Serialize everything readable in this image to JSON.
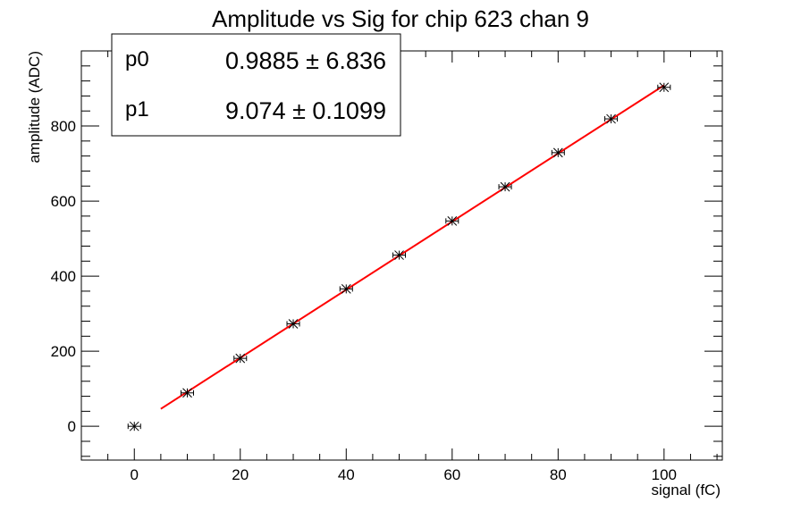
{
  "chart_data": {
    "type": "scatter",
    "title": "Amplitude vs Sig for chip 623 chan 9",
    "xlabel": "signal (fC)",
    "ylabel": "amplitude (ADC)",
    "xlim": [
      -10,
      111
    ],
    "ylim": [
      -90,
      1000
    ],
    "x_ticks": [
      0,
      20,
      40,
      60,
      80,
      100
    ],
    "y_ticks": [
      0,
      200,
      400,
      600,
      800
    ],
    "grid": false,
    "series": [
      {
        "x": [
          0,
          10,
          20,
          30,
          40,
          50,
          60,
          70,
          80,
          90,
          100
        ],
        "y": [
          0,
          89,
          181,
          273,
          366,
          456,
          547,
          638,
          729,
          819,
          903
        ],
        "marker": "star",
        "color": "#000000"
      }
    ],
    "fit": {
      "color": "#ff0000",
      "x_range": [
        5,
        100
      ],
      "p0": 0.9885,
      "p1": 9.074
    },
    "stats_box": {
      "position": "top-left",
      "rows": [
        {
          "name": "p0",
          "value": "0.9885 ± 6.836"
        },
        {
          "name": "p1",
          "value": "9.074 ± 0.1099"
        }
      ]
    }
  }
}
